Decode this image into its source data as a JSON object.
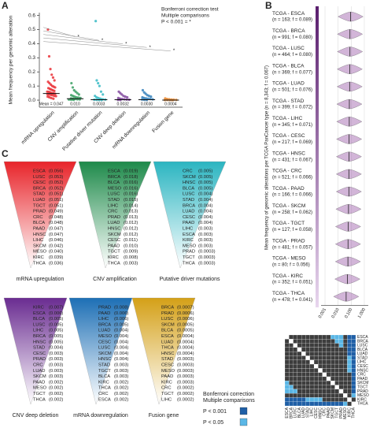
{
  "panel_labels": {
    "a": "A",
    "b": "B",
    "c": "C"
  },
  "chart_data": [
    {
      "type": "strip",
      "y_label": "Mean frequency per genomic alteration",
      "annotation": [
        "Bonferroni correction test",
        "Multiple comparisons",
        "P < 0.001 = *"
      ],
      "significance_marker": "*",
      "ylim": [
        -0.05,
        0.62
      ],
      "yticks": [
        {
          "value": 0,
          "label": "0.0"
        },
        0.1,
        0.2,
        0.3,
        0.4,
        0.5,
        0.6
      ],
      "series": [
        {
          "name": "mRNA upregulation",
          "color": "#e8242a",
          "mean": 0.047,
          "mean_label": "Mean = 0.047",
          "values": [
            0.5,
            0.31,
            0.22,
            0.18,
            0.16,
            0.14,
            0.13,
            0.12,
            0.11,
            0.1,
            0.095,
            0.09,
            0.085,
            0.08,
            0.075,
            0.07,
            0.065,
            0.06,
            0.058,
            0.055,
            0.05,
            0.048,
            0.045,
            0.042,
            0.04,
            0.038,
            0.035,
            0.03,
            0.028,
            0.025,
            0.02,
            0.015,
            0.01
          ]
        },
        {
          "name": "CNV amplification",
          "color": "#2e9a5a",
          "mean": 0.01,
          "mean_label": "0.010",
          "values": [
            0.12,
            0.09,
            0.07,
            0.06,
            0.05,
            0.04,
            0.035,
            0.03,
            0.025,
            0.02,
            0.018,
            0.015,
            0.012,
            0.01,
            0.008,
            0.006,
            0.005,
            0.004,
            0.003,
            0.002
          ]
        },
        {
          "name": "Putative driver mutation",
          "color": "#2bb5c1",
          "mean": 0.0033,
          "mean_label": "0.0033",
          "values": [
            0.56,
            0.14,
            0.12,
            0.1,
            0.06,
            0.04,
            0.03,
            0.02,
            0.015,
            0.01,
            0.006,
            0.004,
            0.003,
            0.002,
            0.001,
            0.001
          ]
        },
        {
          "name": "CNV deep deletion",
          "color": "#7b3f98",
          "mean": 0.0032,
          "mean_label": "0.0032",
          "values": [
            0.06,
            0.05,
            0.04,
            0.03,
            0.025,
            0.02,
            0.015,
            0.01,
            0.008,
            0.006,
            0.004,
            0.003,
            0.002,
            0.001
          ]
        },
        {
          "name": "mRNA downregulation",
          "color": "#2a7ab8",
          "mean": 0.003,
          "mean_label": "0.0030",
          "values": [
            0.07,
            0.055,
            0.045,
            0.035,
            0.03,
            0.025,
            0.02,
            0.015,
            0.012,
            0.01,
            0.008,
            0.006,
            0.004,
            0.002,
            0.001
          ]
        },
        {
          "name": "Fusion gene",
          "color": "#e8862a",
          "mean": 0.0004,
          "mean_label": "0.0004",
          "values": [
            0.012,
            0.008,
            0.006,
            0.004,
            0.003,
            0.002,
            0.001,
            0.001,
            0.0005,
            0.0003
          ]
        }
      ]
    },
    {
      "type": "violin",
      "x_label": "Mean frequency of genomic alterations per TCGA PanCancer type (n = 8,343; f = 0.067)",
      "color": "#9b5aa8",
      "log_x": true,
      "xlim": [
        0.0005,
        2
      ],
      "xticks": [
        0.001,
        {
          "value": 0.01,
          "label": "0.010"
        },
        {
          "value": 0.1,
          "label": "0.100"
        },
        {
          "value": 1,
          "label": "1.000"
        }
      ],
      "categories": [
        "TCGA - ESCA",
        "TCGA - BRCA",
        "TCGA - LUSC",
        "TCGA - BLCA",
        "TCGA - LUAD",
        "TCGA - STAD",
        "TCGA - LIHC",
        "TCGA - CESC",
        "TCGA - HNSC",
        "TCGA - CRC",
        "TCGA - PAAD",
        "TCGA - SKCM",
        "TCGA - TGCT",
        "TCGA - PRAD",
        "TCGA - MESO",
        "TCGA - KIRC",
        "TCGA - THCA"
      ],
      "values": [
        0.089,
        0.08,
        0.08,
        0.077,
        0.076,
        0.072,
        0.071,
        0.069,
        0.067,
        0.066,
        0.066,
        0.062,
        0.058,
        0.057,
        0.056,
        0.051,
        0.041
      ],
      "value_labels": [
        "(n = 163; f = 0.089)",
        "(n = 991; f = 0.080)",
        "(n = 464; f = 0.080)",
        "(n = 369; f = 0.077)",
        "(n = 501; f = 0.076)",
        "(n = 399; f = 0.072)",
        "(n = 345; f = 0.071)",
        "(n = 217; f = 0.069)",
        "(n = 431; f = 0.067)",
        "(n = 521; f = 0.066)",
        "(n = 166; f = 0.066)",
        "(n = 258; f = 0.062)",
        "(n = 127; f = 0.058)",
        "(n = 481; f = 0.057)",
        "(n = 80; f = 0.056)",
        "(n = 352; f = 0.051)",
        "(n = 478; f = 0.041)"
      ]
    },
    {
      "type": "heatmap",
      "categories": [
        "ESCA",
        "BRCA",
        "LUSC",
        "BLCA",
        "LUAD",
        "STAD",
        "LIHC",
        "CESC",
        "HNSC",
        "CRC",
        "PAAD",
        "SKCM",
        "TGCT",
        "PRAD",
        "MESO",
        "KIRC",
        "THCA"
      ],
      "level_colors": [
        "#3d3d3d",
        "#5bb7e6",
        "#1f5fa6"
      ],
      "legend_title": [
        "Bonferroni correction",
        "Multiple comparisons"
      ],
      "legend": [
        {
          "label": "P < 0.001",
          "level": 2
        },
        {
          "label": "P < 0.05",
          "level": 1
        }
      ],
      "values": [
        [
          null,
          0,
          0,
          0,
          0,
          0,
          0,
          0,
          0,
          0,
          0,
          1,
          1,
          1,
          0,
          2,
          2
        ],
        [
          0,
          null,
          0,
          0,
          0,
          0,
          0,
          0,
          0,
          0,
          0,
          0,
          1,
          1,
          0,
          2,
          2
        ],
        [
          0,
          0,
          null,
          0,
          0,
          0,
          0,
          0,
          0,
          0,
          0,
          0,
          0,
          1,
          0,
          2,
          2
        ],
        [
          0,
          0,
          0,
          null,
          0,
          0,
          0,
          0,
          0,
          0,
          0,
          0,
          0,
          0,
          0,
          2,
          2
        ],
        [
          0,
          0,
          0,
          0,
          null,
          0,
          0,
          0,
          0,
          0,
          0,
          0,
          0,
          0,
          0,
          2,
          2
        ],
        [
          0,
          0,
          0,
          0,
          0,
          null,
          0,
          0,
          0,
          0,
          0,
          0,
          0,
          0,
          0,
          1,
          2
        ],
        [
          0,
          0,
          0,
          0,
          0,
          0,
          null,
          0,
          0,
          0,
          0,
          0,
          0,
          0,
          0,
          1,
          2
        ],
        [
          0,
          0,
          0,
          0,
          0,
          0,
          0,
          null,
          0,
          0,
          0,
          0,
          0,
          0,
          0,
          1,
          2
        ],
        [
          0,
          0,
          0,
          0,
          0,
          0,
          0,
          0,
          null,
          0,
          0,
          0,
          0,
          0,
          0,
          1,
          2
        ],
        [
          0,
          0,
          0,
          0,
          0,
          0,
          0,
          0,
          0,
          null,
          0,
          0,
          0,
          0,
          0,
          0,
          2
        ],
        [
          0,
          0,
          0,
          0,
          0,
          0,
          0,
          0,
          0,
          0,
          null,
          0,
          0,
          0,
          0,
          0,
          2
        ],
        [
          1,
          0,
          0,
          0,
          0,
          0,
          0,
          0,
          0,
          0,
          0,
          null,
          0,
          0,
          0,
          0,
          2
        ],
        [
          1,
          1,
          0,
          0,
          0,
          0,
          0,
          0,
          0,
          0,
          0,
          0,
          null,
          0,
          0,
          0,
          2
        ],
        [
          1,
          1,
          1,
          0,
          0,
          0,
          0,
          0,
          0,
          0,
          0,
          0,
          0,
          null,
          0,
          0,
          2
        ],
        [
          0,
          0,
          0,
          0,
          0,
          0,
          0,
          0,
          0,
          0,
          0,
          0,
          0,
          0,
          null,
          0,
          1
        ],
        [
          2,
          2,
          2,
          2,
          2,
          1,
          1,
          1,
          1,
          0,
          0,
          0,
          0,
          0,
          0,
          null,
          0
        ],
        [
          2,
          2,
          2,
          2,
          2,
          2,
          2,
          2,
          2,
          2,
          2,
          2,
          2,
          2,
          1,
          0,
          null
        ]
      ]
    }
  ],
  "rankings": [
    {
      "title": "mRNA upregulation",
      "color": "#e8242a",
      "items": [
        [
          "ESCA",
          "(0.056)"
        ],
        [
          "LUSC",
          "(0.053)"
        ],
        [
          "CESC",
          "(0.052)"
        ],
        [
          "BRCA",
          "(0.052)"
        ],
        [
          "STAD",
          "(0.051)"
        ],
        [
          "LUAD",
          "(0.051)"
        ],
        [
          "TGCT",
          "(0.051)"
        ],
        [
          "PRAD",
          "(0.049)"
        ],
        [
          "CRC",
          "(0.048)"
        ],
        [
          "BLCA",
          "(0.048)"
        ],
        [
          "PAAD",
          "(0.047)"
        ],
        [
          "HNSC",
          "(0.047)"
        ],
        [
          "LIHC",
          "(0.046)"
        ],
        [
          "SKCM",
          "(0.042)"
        ],
        [
          "MESO",
          "(0.040)"
        ],
        [
          "KIRC",
          "(0.039)"
        ],
        [
          "THCA",
          "(0.036)"
        ]
      ]
    },
    {
      "title": "CNV amplification",
      "color": "#1e8a4a",
      "items": [
        [
          "ESCA",
          "(0.019)"
        ],
        [
          "BRCA",
          "(0.018)"
        ],
        [
          "BLCA",
          "(0.016)"
        ],
        [
          "MESO",
          "(0.016)"
        ],
        [
          "LUSC",
          "(0.016)"
        ],
        [
          "STAD",
          "(0.015)"
        ],
        [
          "LIHC",
          "(0.014)"
        ],
        [
          "CRC",
          "(0.013)"
        ],
        [
          "PRAD",
          "(0.013)"
        ],
        [
          "LUAD",
          "(0.012)"
        ],
        [
          "HNSC",
          "(0.012)"
        ],
        [
          "SKCM",
          "(0.012)"
        ],
        [
          "CESC",
          "(0.011)"
        ],
        [
          "PAAD",
          "(0.010)"
        ],
        [
          "TGCT",
          "(0.009)"
        ],
        [
          "KIRC",
          "(0.008)"
        ],
        [
          "THCA",
          "(0.003)"
        ]
      ]
    },
    {
      "title": "Putative driver mutations",
      "color": "#2bb5c1",
      "items": [
        [
          "CRC",
          "(0.005)"
        ],
        [
          "SKCM",
          "(0.005)"
        ],
        [
          "HNSC",
          "(0.005)"
        ],
        [
          "BLCA",
          "(0.005)"
        ],
        [
          "LUSC",
          "(0.004)"
        ],
        [
          "STAD",
          "(0.004)"
        ],
        [
          "BRCA",
          "(0.004)"
        ],
        [
          "LUAD",
          "(0.004)"
        ],
        [
          "CESC",
          "(0.004)"
        ],
        [
          "PAAD",
          "(0.004)"
        ],
        [
          "LIHC",
          "(0.003)"
        ],
        [
          "ESCA",
          "(0.003)"
        ],
        [
          "KIRC",
          "(0.003)"
        ],
        [
          "MESO",
          "(0.003)"
        ],
        [
          "PRAD",
          "(0.0003)"
        ],
        [
          "TGCT",
          "(0.0003)"
        ],
        [
          "THCA",
          "(0.0003)"
        ]
      ]
    },
    {
      "title": "CNV deep deletion",
      "color": "#6a2c91",
      "items": [
        [
          "KIRC",
          "(0.007)"
        ],
        [
          "ESCA",
          "(0.006)"
        ],
        [
          "BLCA",
          "(0.005)"
        ],
        [
          "LUSC",
          "(0.005)"
        ],
        [
          "LIHC",
          "(0.005)"
        ],
        [
          "BRCA",
          "(0.005)"
        ],
        [
          "HNSC",
          "(0.005)"
        ],
        [
          "STAD",
          "(0.004)"
        ],
        [
          "CESC",
          "(0.003)"
        ],
        [
          "PRAD",
          "(0.003)"
        ],
        [
          "CRC",
          "(0.003)"
        ],
        [
          "LUAD",
          "(0.003)"
        ],
        [
          "SKCM",
          "(0.003)"
        ],
        [
          "PAAD",
          "(0.002)"
        ],
        [
          "MESO",
          "(0.002)"
        ],
        [
          "TGCT",
          "(0.002)"
        ],
        [
          "THCA",
          "(0.002)"
        ]
      ]
    },
    {
      "title": "mRNA downregulation",
      "color": "#1d6fb5",
      "items": [
        [
          "PRAD",
          "(0.008)"
        ],
        [
          "PAAD",
          "(0.006)"
        ],
        [
          "LIHC",
          "(0.006)"
        ],
        [
          "BRCA",
          "(0.005)"
        ],
        [
          "LUAD",
          "(0.004)"
        ],
        [
          "MESO",
          "(0.004)"
        ],
        [
          "CESC",
          "(0.004)"
        ],
        [
          "LUSC",
          "(0.004)"
        ],
        [
          "SKCM",
          "(0.004)"
        ],
        [
          "HNSC",
          "(0.004)"
        ],
        [
          "STAD",
          "(0.003)"
        ],
        [
          "TGCT",
          "(0.003)"
        ],
        [
          "BLCA",
          "(0.003)"
        ],
        [
          "KIRC",
          "(0.002)"
        ],
        [
          "THCA",
          "(0.002)"
        ],
        [
          "CRC",
          "(0.002)"
        ],
        [
          "ESCA",
          "(0.002)"
        ]
      ]
    },
    {
      "title": "Fusion gene",
      "color": "#d4a017",
      "items": [
        [
          "BRCA",
          "(0.0007)"
        ],
        [
          "PRAD",
          "(0.0006)"
        ],
        [
          "LUSC",
          "(0.0006)"
        ],
        [
          "SKCM",
          "(0.0005)"
        ],
        [
          "BLCA",
          "(0.0005)"
        ],
        [
          "ESCA",
          "(0.0004)"
        ],
        [
          "LUAD",
          "(0.0004)"
        ],
        [
          "THCA",
          "(0.0004)"
        ],
        [
          "HNSC",
          "(0.0004)"
        ],
        [
          "STAD",
          "(0.0003)"
        ],
        [
          "CESC",
          "(0.0003)"
        ],
        [
          "MESO",
          "(0.0003)"
        ],
        [
          "PAAD",
          "(0.0003)"
        ],
        [
          "KIRC",
          "(0.0003)"
        ],
        [
          "CRC",
          "(0.0002)"
        ],
        [
          "TGCT",
          "(0.0002)"
        ],
        [
          "LIHC",
          "(0.0002)"
        ]
      ]
    }
  ]
}
